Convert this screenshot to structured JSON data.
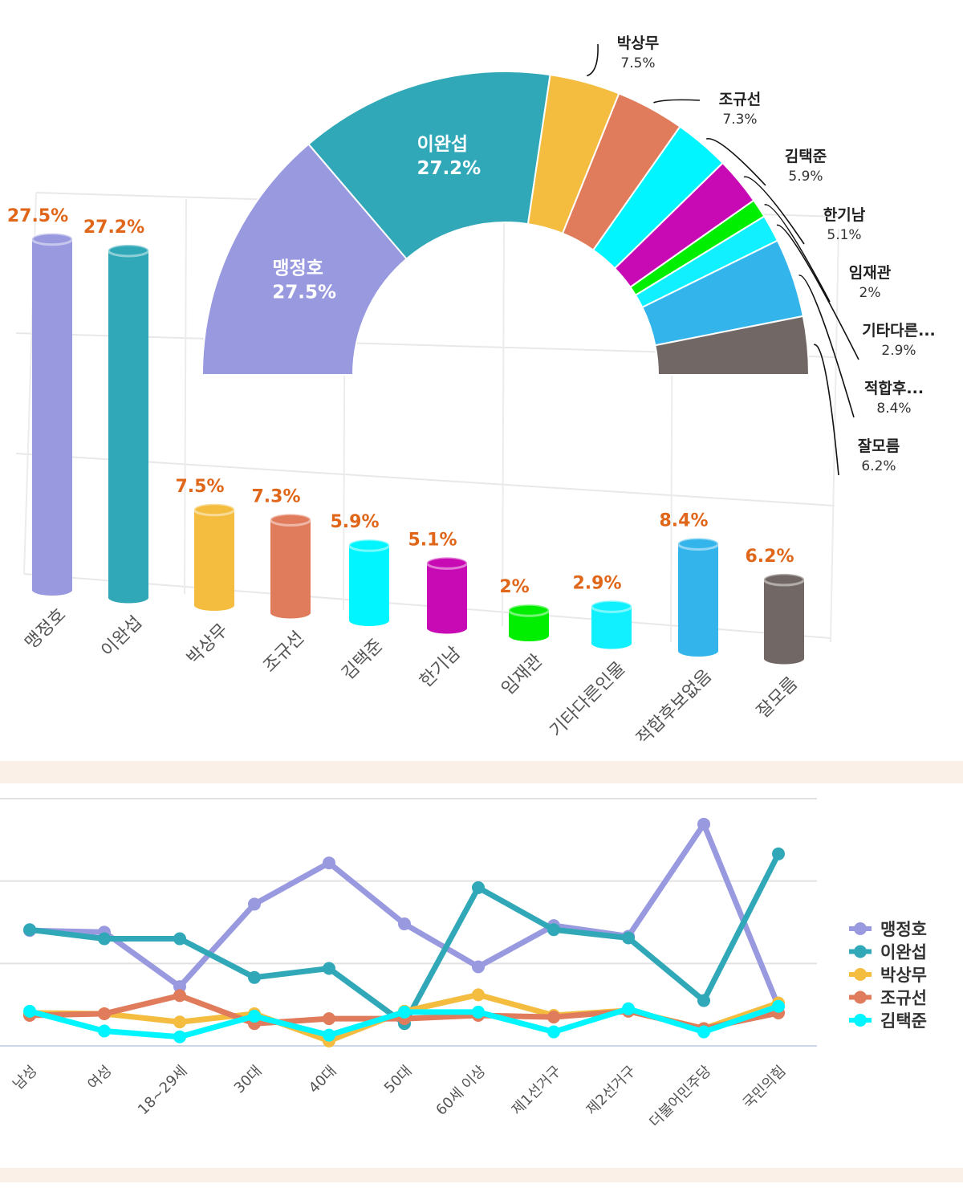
{
  "chart_data": [
    {
      "type": "bar",
      "style": "3d-cylinder",
      "categories": [
        "맹정호",
        "이완섭",
        "박상무",
        "조규선",
        "김택준",
        "한기남",
        "임재관",
        "기타다른인물",
        "적합후보없음",
        "잘모름"
      ],
      "values": [
        27.5,
        27.2,
        7.5,
        7.3,
        5.9,
        5.1,
        2,
        2.9,
        8.4,
        6.2
      ],
      "value_labels": [
        "27.5%",
        "27.2%",
        "7.5%",
        "7.3%",
        "5.9%",
        "5.1%",
        "2%",
        "2.9%",
        "8.4%",
        "6.2%"
      ],
      "colors": [
        "#9999e0",
        "#31a8b8",
        "#f4bd40",
        "#e07b5b",
        "#00f5ff",
        "#c80ab4",
        "#00ee00",
        "#11f0ff",
        "#33b5ec",
        "#716865"
      ],
      "unit": "%"
    },
    {
      "type": "pie",
      "style": "semi-donut",
      "labels": [
        "맹정호",
        "이완섭",
        "박상무",
        "조규선",
        "김택준",
        "한기남",
        "임재관",
        "기타다른...",
        "적합후...",
        "잘모름"
      ],
      "values": [
        27.5,
        27.2,
        7.5,
        7.3,
        5.9,
        5.1,
        2,
        2.9,
        8.4,
        6.2
      ],
      "value_labels": [
        "27.5%",
        "27.2%",
        "7.5%",
        "7.3%",
        "5.9%",
        "5.1%",
        "2%",
        "2.9%",
        "8.4%",
        "6.2%"
      ],
      "colors": [
        "#9999e0",
        "#31a8b8",
        "#f4bd40",
        "#e07b5b",
        "#00f5ff",
        "#c80ab4",
        "#00ee00",
        "#11f0ff",
        "#33b5ec",
        "#716865"
      ]
    },
    {
      "type": "line",
      "categories": [
        "남성",
        "여성",
        "18~29세",
        "30대",
        "40대",
        "50대",
        "60세 이상",
        "제1선거구",
        "제2선거구",
        "더불어민주당",
        "국민의힘"
      ],
      "ylim": [
        0,
        30
      ],
      "grid": true,
      "legend_position": "right",
      "series": [
        {
          "name": "맹정호",
          "color": "#9999e0",
          "values": [
            14.0,
            13.8,
            7.2,
            17.2,
            22.2,
            14.8,
            9.6,
            14.6,
            13.3,
            26.9,
            4.8
          ]
        },
        {
          "name": "이완섭",
          "color": "#31a8b8",
          "values": [
            14.1,
            13.0,
            13.0,
            8.3,
            9.4,
            2.7,
            19.2,
            14.1,
            13.1,
            5.5,
            23.3
          ]
        },
        {
          "name": "박상무",
          "color": "#f4bd40",
          "values": [
            4.0,
            3.9,
            2.9,
            3.9,
            0.6,
            4.2,
            6.2,
            3.7,
            4.3,
            2.1,
            5.2
          ]
        },
        {
          "name": "조규선",
          "color": "#e07b5b",
          "values": [
            3.7,
            3.9,
            6.1,
            2.7,
            3.3,
            3.3,
            3.7,
            3.5,
            4.2,
            2.1,
            4.0
          ]
        },
        {
          "name": "김택준",
          "color": "#00f5ff",
          "values": [
            4.2,
            1.8,
            1.1,
            3.6,
            1.3,
            4.1,
            4.1,
            1.7,
            4.5,
            1.7,
            4.8
          ]
        }
      ]
    }
  ]
}
